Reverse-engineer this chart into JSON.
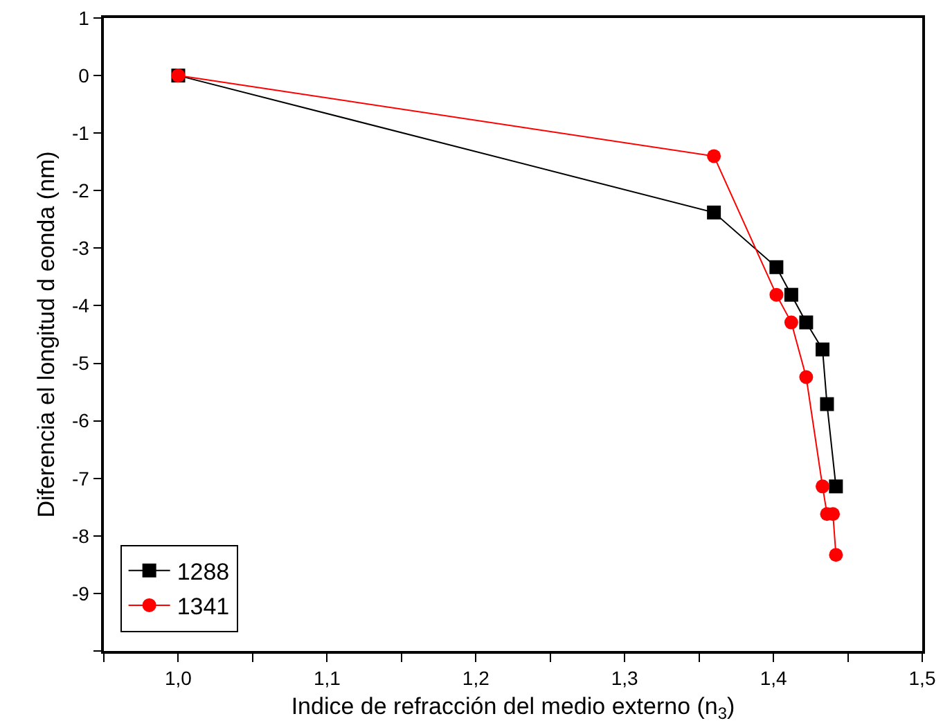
{
  "chart_data": {
    "type": "line",
    "xlabel": "Indice de refracción del medio externo (n$_{3}$)",
    "ylabel": "Diferencia el longitud d eonda (nm)",
    "x": [
      1.0,
      1.36,
      1.402,
      1.412,
      1.422,
      1.433,
      1.436,
      1.442
    ],
    "series": [
      {
        "name": "1288",
        "color": "#000000",
        "marker": "square",
        "values": [
          0,
          -2.38,
          -3.33,
          -3.81,
          -4.29,
          -4.76,
          -5.71,
          -7.14
        ]
      },
      {
        "name": "1341",
        "color": "#ff0000",
        "marker": "circle",
        "x": [
          1.0,
          1.36,
          1.402,
          1.412,
          1.422,
          1.433,
          1.436,
          1.44,
          1.442
        ],
        "values": [
          0,
          -1.4,
          -3.81,
          -4.29,
          -5.24,
          -7.14,
          -7.62,
          -7.62,
          -8.33
        ]
      }
    ],
    "xlim": [
      0.95,
      1.5
    ],
    "xticks": [
      {
        "value": 0.95,
        "label": null
      },
      {
        "value": 1.0,
        "label": "1,0"
      },
      {
        "value": 1.05,
        "label": null
      },
      {
        "value": 1.1,
        "label": "1,1"
      },
      {
        "value": 1.15,
        "label": null
      },
      {
        "value": 1.2,
        "label": "1,2"
      },
      {
        "value": 1.25,
        "label": null
      },
      {
        "value": 1.3,
        "label": "1,3"
      },
      {
        "value": 1.35,
        "label": null
      },
      {
        "value": 1.4,
        "label": "1,4"
      },
      {
        "value": 1.45,
        "label": null
      },
      {
        "value": 1.5,
        "label": "1,5"
      }
    ],
    "ylim": [
      -10,
      1
    ],
    "yticks": [
      {
        "value": -10,
        "label": null
      },
      -9,
      -8,
      -7,
      -6,
      -5,
      -4,
      -3,
      -2,
      -1,
      0,
      1
    ],
    "legend": "bottom left",
    "grid": false,
    "line_style": "solid"
  }
}
